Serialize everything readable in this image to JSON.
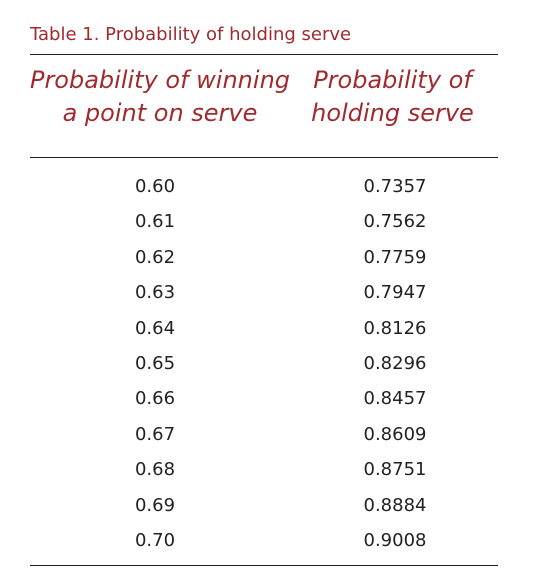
{
  "table": {
    "caption": "Table 1. Probability of holding serve",
    "headers": [
      {
        "lines": [
          "Probability of winning",
          "a point on serve"
        ]
      },
      {
        "lines": [
          "Probability of",
          "holding serve"
        ]
      }
    ],
    "rows": [
      [
        "0.60",
        "0.7357"
      ],
      [
        "0.61",
        "0.7562"
      ],
      [
        "0.62",
        "0.7759"
      ],
      [
        "0.63",
        "0.7947"
      ],
      [
        "0.64",
        "0.8126"
      ],
      [
        "0.65",
        "0.8296"
      ],
      [
        "0.66",
        "0.8457"
      ],
      [
        "0.67",
        "0.8609"
      ],
      [
        "0.68",
        "0.8751"
      ],
      [
        "0.69",
        "0.8884"
      ],
      [
        "0.70",
        "0.9008"
      ]
    ]
  },
  "colors": {
    "accent": "#a12a2f",
    "text": "#222222",
    "rule": "#222222"
  }
}
